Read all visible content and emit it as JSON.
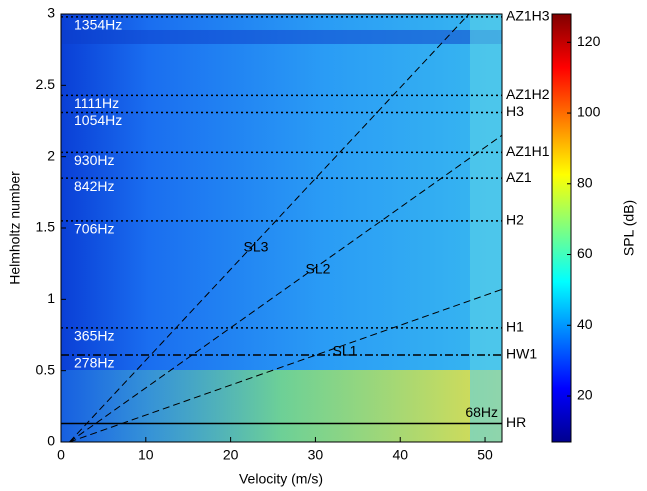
{
  "chart_data": {
    "type": "heatmap",
    "xlabel": "Velocity (m/s)",
    "ylabel": "Helmholtz number",
    "colorbar_label": "SPL (dB)",
    "xlim": [
      0,
      52
    ],
    "ylim": [
      0,
      3
    ],
    "xticks": [
      0,
      10,
      20,
      30,
      40,
      50
    ],
    "yticks": [
      0,
      0.5,
      1,
      1.5,
      2,
      2.5,
      3
    ],
    "clim": [
      7,
      128
    ],
    "cticks": [
      20,
      40,
      60,
      80,
      100,
      120
    ],
    "colormap": "jet",
    "reference_lines": [
      {
        "name": "AZ1H3",
        "hz_label": "1354Hz",
        "value": 2.98,
        "style": "dotted"
      },
      {
        "name": "AZ1H2",
        "hz_label": "1111Hz",
        "value": 2.43,
        "style": "dotted"
      },
      {
        "name": "H3",
        "hz_label": "1054Hz",
        "value": 2.31,
        "style": "dotted"
      },
      {
        "name": "AZ1H1",
        "hz_label": "930Hz",
        "value": 2.03,
        "style": "dotted"
      },
      {
        "name": "AZ1",
        "hz_label": "842Hz",
        "value": 1.85,
        "style": "dotted"
      },
      {
        "name": "H2",
        "hz_label": "706Hz",
        "value": 1.55,
        "style": "dotted"
      },
      {
        "name": "H1",
        "hz_label": "365Hz",
        "value": 0.8,
        "style": "dotted"
      },
      {
        "name": "HW1",
        "hz_label": "278Hz",
        "value": 0.61,
        "style": "dashdot"
      },
      {
        "name": "HR",
        "hz_label": "68Hz",
        "value": 0.13,
        "style": "solid"
      }
    ],
    "speed_lines": [
      {
        "name": "SL3",
        "x": [
          1,
          48.1
        ],
        "y": [
          0,
          3
        ]
      },
      {
        "name": "SL2",
        "x": [
          1,
          52
        ],
        "y": [
          0,
          2.15
        ]
      },
      {
        "name": "SL1",
        "x": [
          1,
          52
        ],
        "y": [
          0,
          1.07
        ]
      }
    ]
  }
}
